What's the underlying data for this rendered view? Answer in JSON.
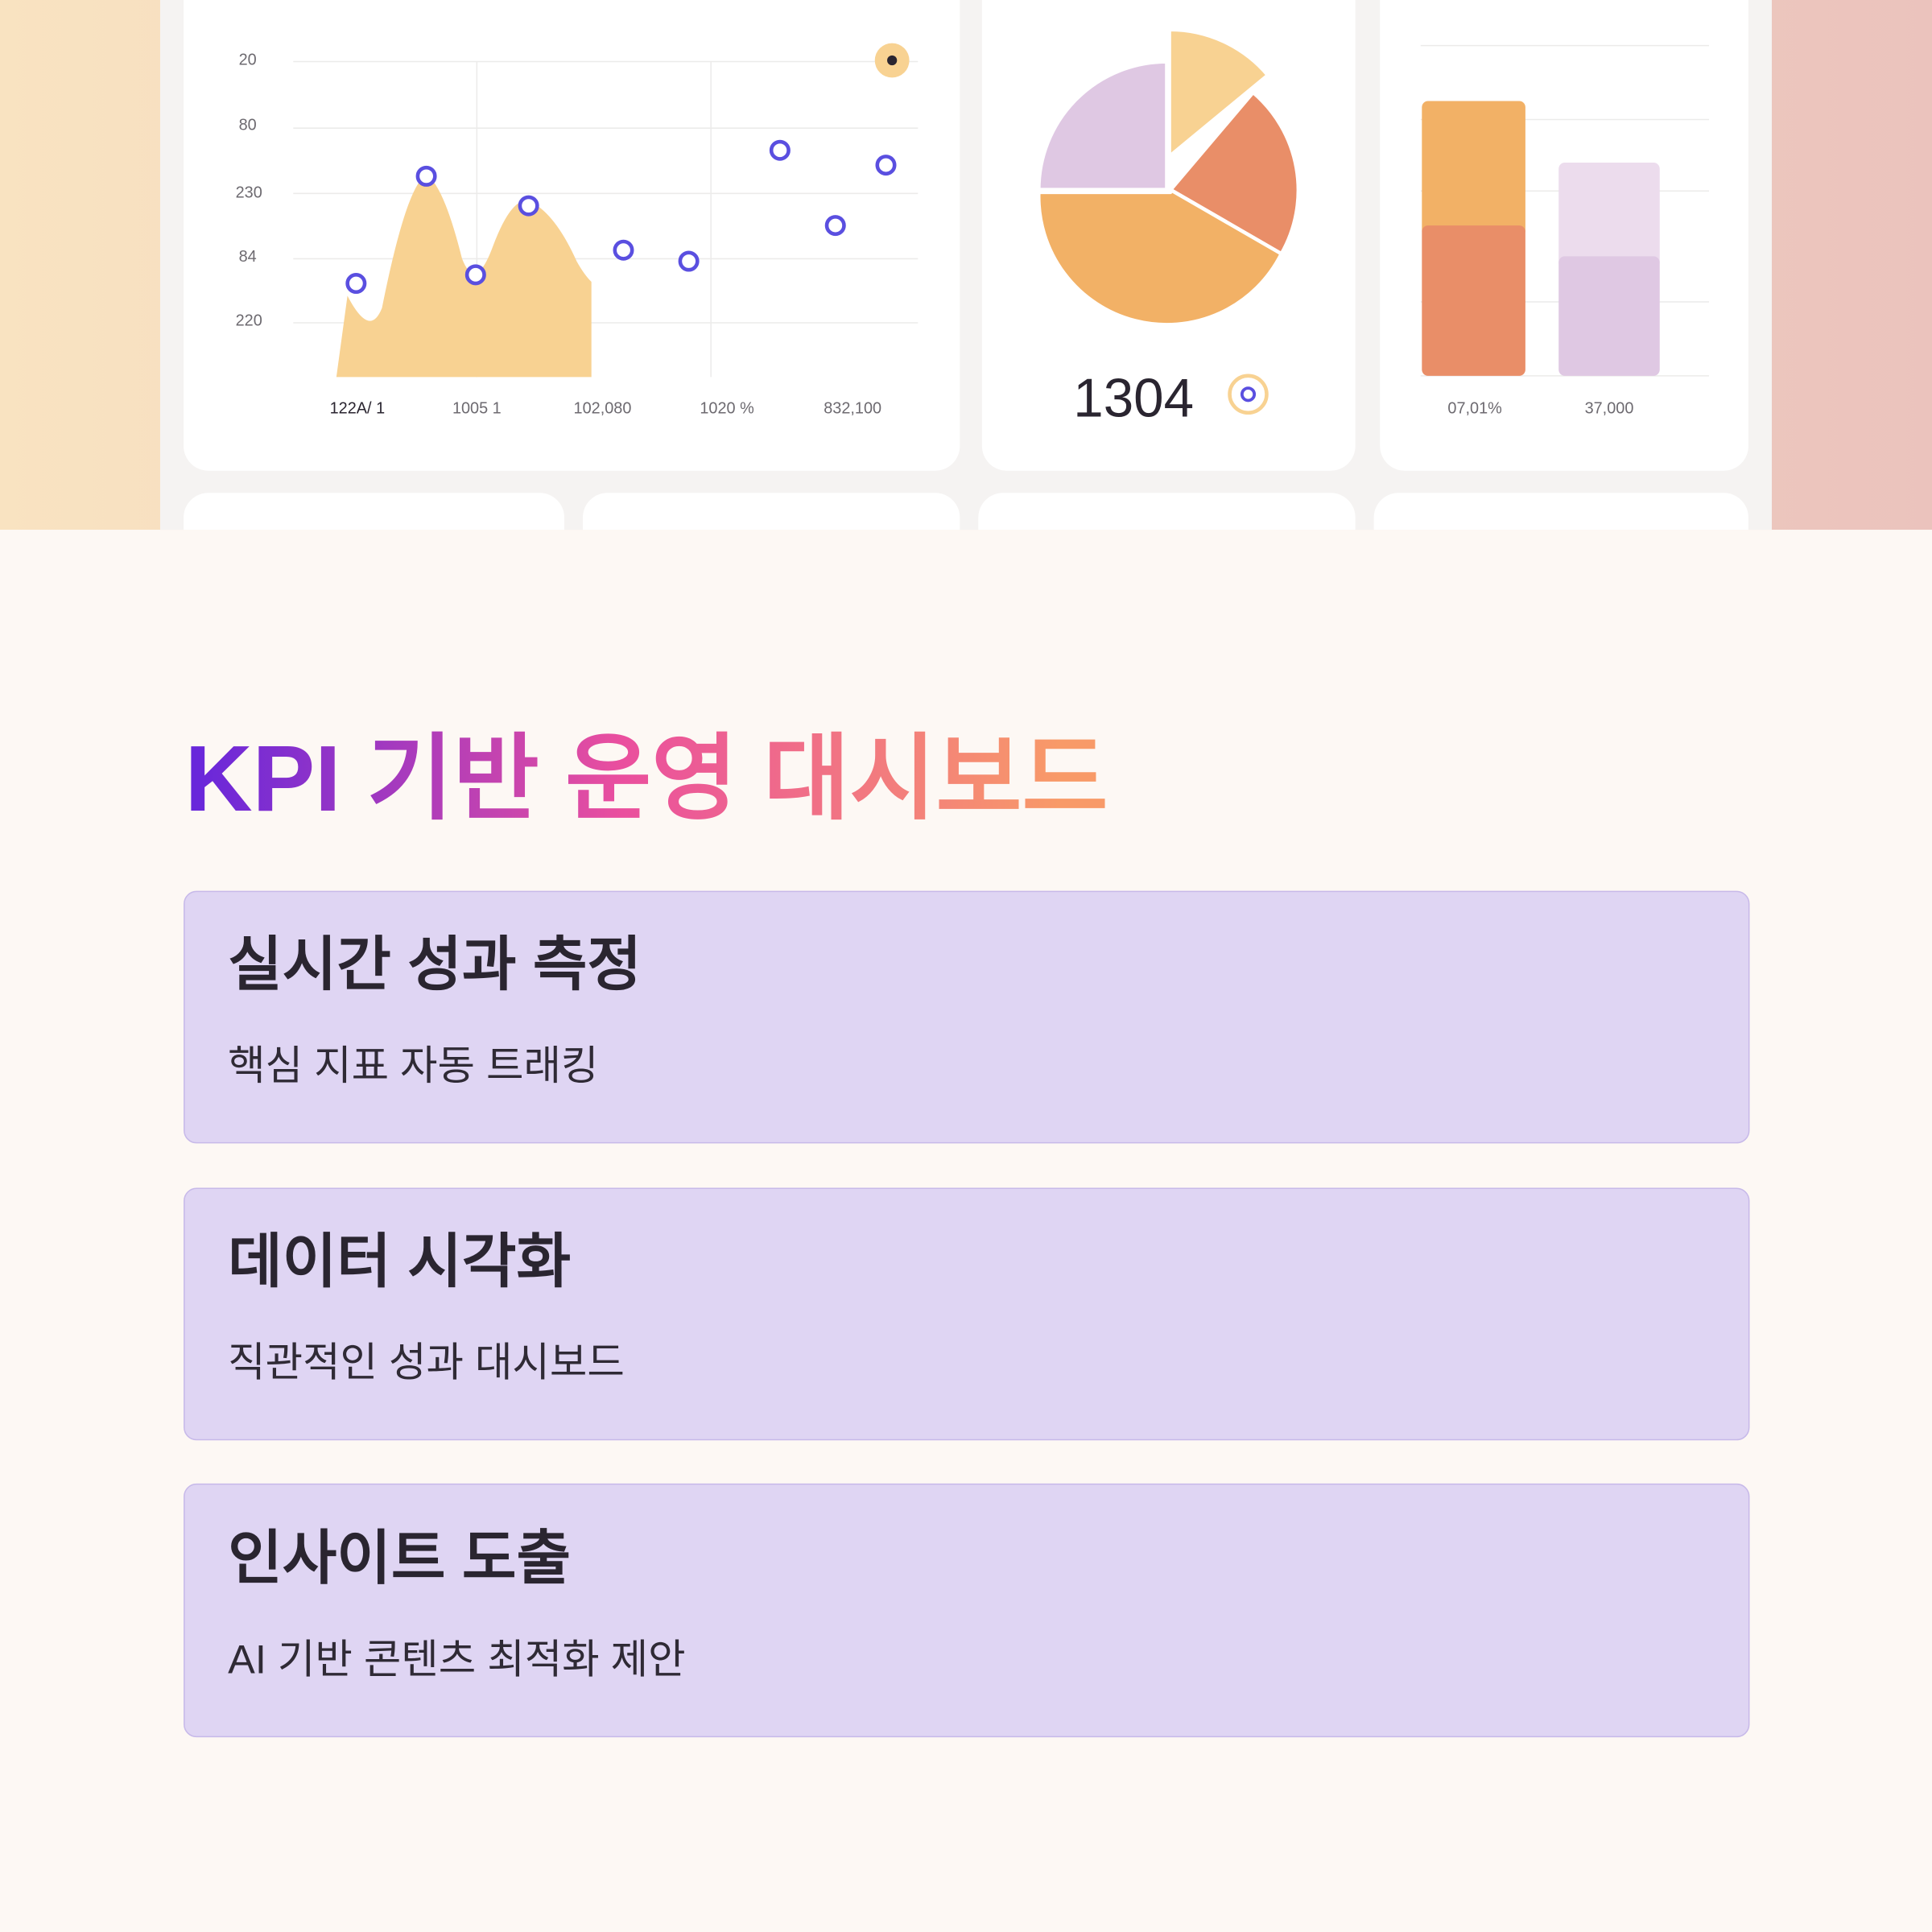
{
  "hero": {
    "line_chart": {
      "y_labels": [
        "20",
        "80",
        "230",
        "84",
        "220"
      ],
      "x_labels": [
        "122A/ 1",
        "1005 1",
        "102,080",
        "1020 %",
        "832,100"
      ]
    },
    "pie_chart": {
      "value": "1304"
    },
    "bar_chart": {
      "x_labels": [
        "07,01%",
        "37,000"
      ]
    }
  },
  "header": {
    "title": "KPI 기반 운영 대시보드"
  },
  "features": [
    {
      "title": "실시간 성과 측정",
      "description": "핵심 지표 자동 트래킹"
    },
    {
      "title": "데이터 시각화",
      "description": "직관적인 성과 대시보드"
    },
    {
      "title": "인사이트 도출",
      "description": "AI 기반 콘텐츠 최적화 제안"
    }
  ]
}
